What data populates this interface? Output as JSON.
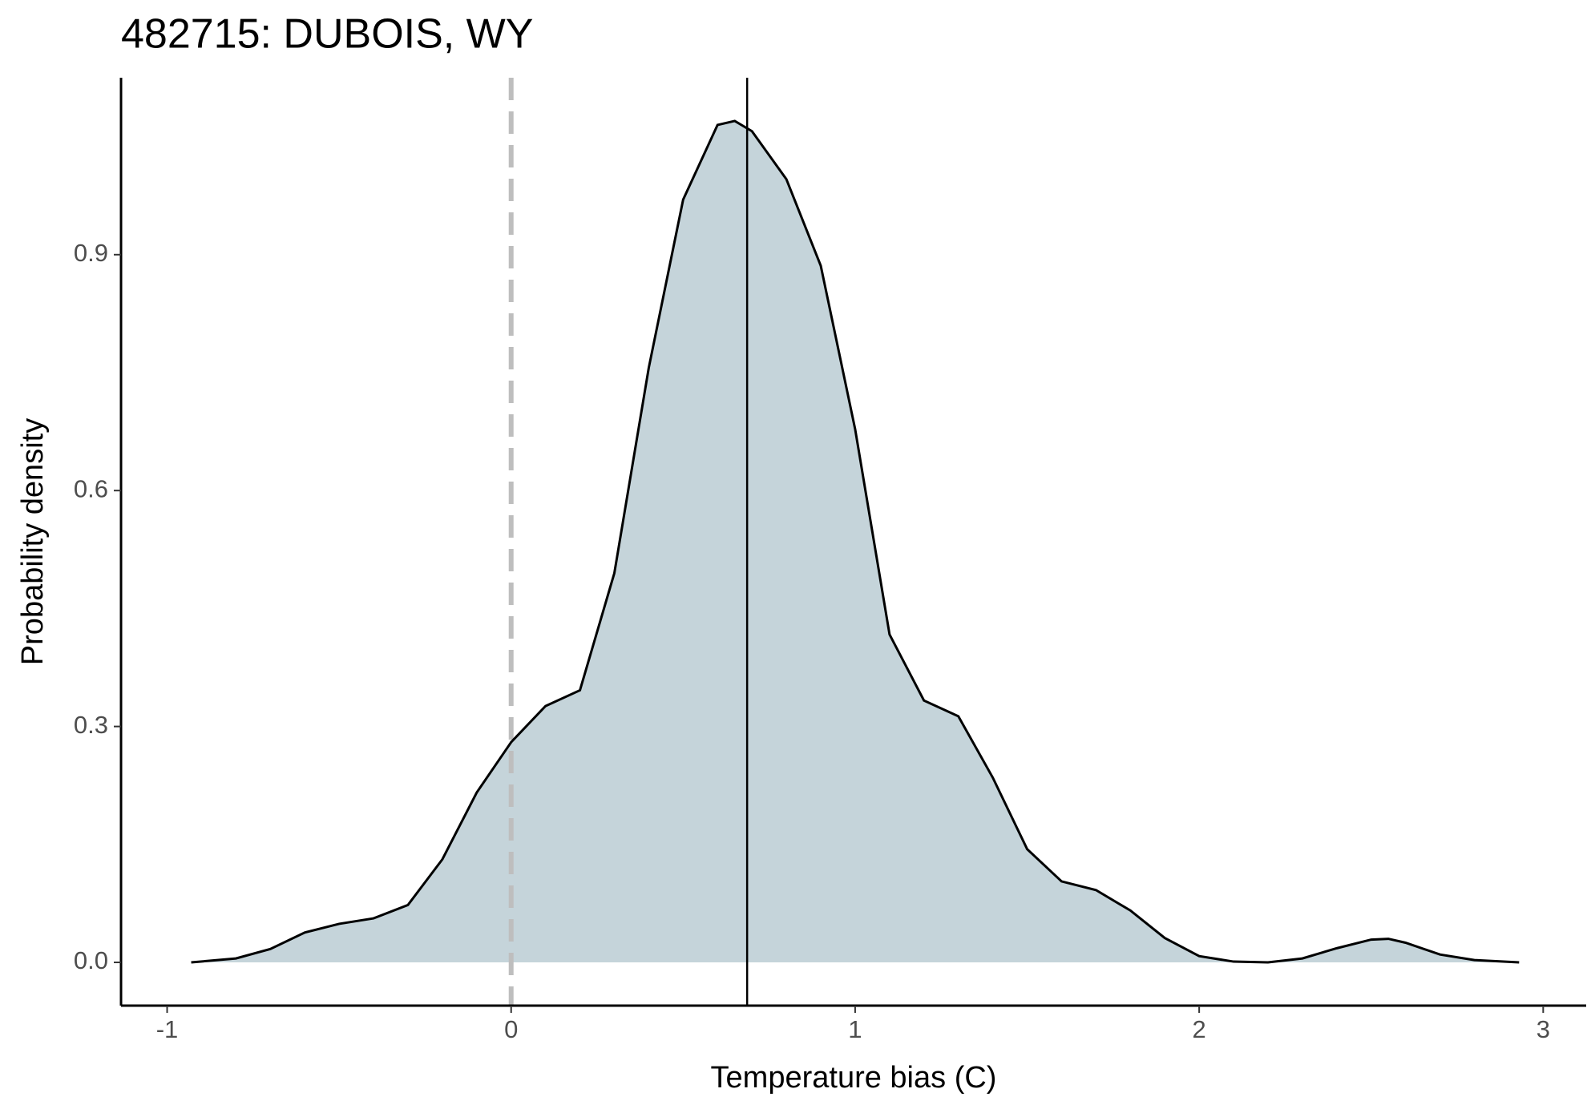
{
  "chart_data": {
    "type": "density",
    "title": "482715: DUBOIS, WY",
    "x_label": "Temperature bias (C)",
    "y_label": "Probability density",
    "x": [
      -0.93,
      -0.8,
      -0.7,
      -0.6,
      -0.5,
      -0.4,
      -0.3,
      -0.2,
      -0.1,
      0,
      0.1,
      0.2,
      0.3,
      0.4,
      0.5,
      0.6,
      0.65,
      0.7,
      0.8,
      0.9,
      1.0,
      1.1,
      1.2,
      1.3,
      1.4,
      1.5,
      1.6,
      1.7,
      1.8,
      1.9,
      2.0,
      2.1,
      2.2,
      2.3,
      2.4,
      2.5,
      2.55,
      2.6,
      2.7,
      2.8,
      2.93
    ],
    "series": [
      {
        "color": "#c5d4da",
        "values": [
          0,
          0.005,
          0.017,
          0.038,
          0.049,
          0.056,
          0.073,
          0.131,
          0.216,
          0.28,
          0.326,
          0.346,
          0.495,
          0.756,
          0.97,
          1.065,
          1.07,
          1.057,
          0.996,
          0.886,
          0.678,
          0.417,
          0.333,
          0.313,
          0.235,
          0.144,
          0.103,
          0.092,
          0.066,
          0.031,
          0.008,
          0.001,
          0,
          0.005,
          0.018,
          0.029,
          0.03,
          0.025,
          0.01,
          0.003,
          0
        ]
      }
    ],
    "vlines": [
      {
        "value": 0,
        "color": "#bebebe",
        "dashed": true
      },
      {
        "value": 0.686,
        "color": "#000000",
        "dashed": false
      }
    ],
    "xlim": [
      -1.134,
      3.125
    ],
    "ylim": [
      -0.055,
      1.125
    ],
    "xticks": [
      -1,
      0,
      1,
      2,
      3
    ],
    "yticks": [
      {
        "value": 0,
        "label": "0.0"
      },
      {
        "value": 0.3,
        "label": "0.3"
      },
      {
        "value": 0.6,
        "label": "0.6"
      },
      {
        "value": 0.9,
        "label": "0.9"
      }
    ]
  }
}
